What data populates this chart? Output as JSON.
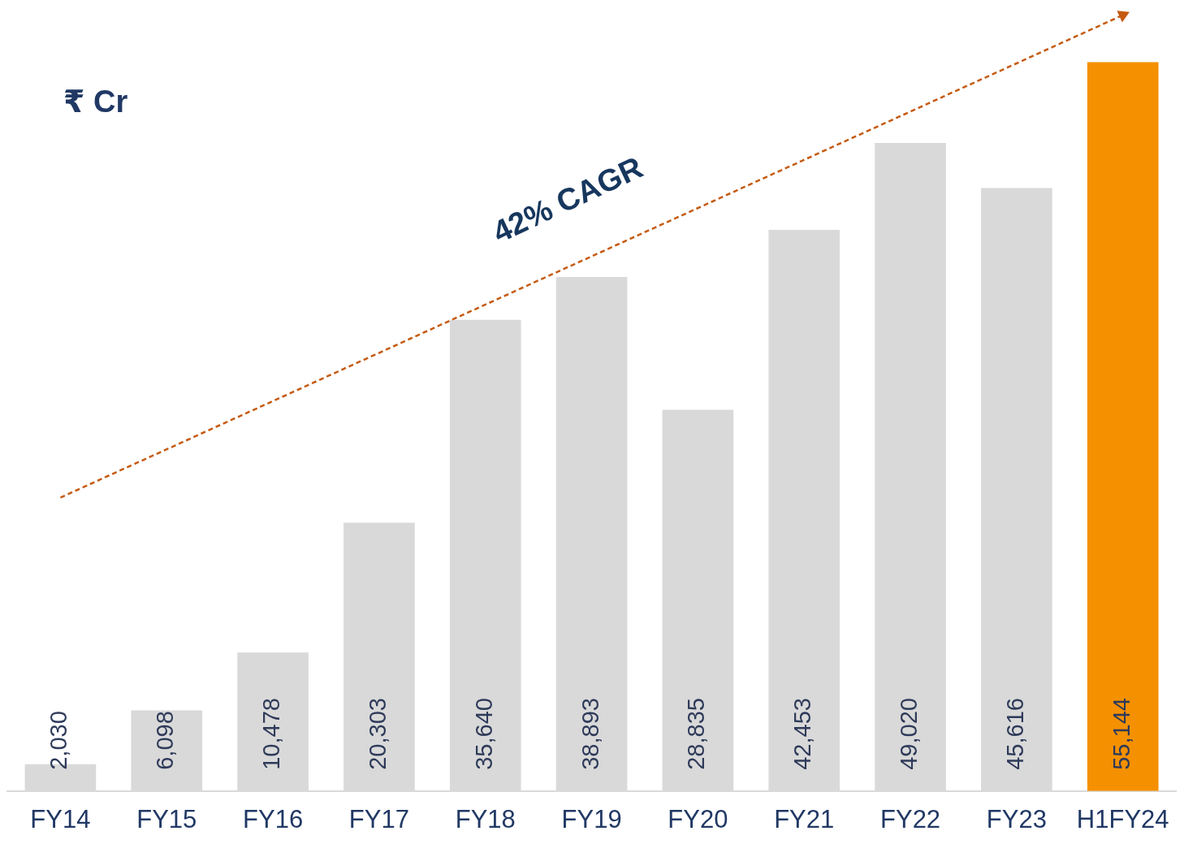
{
  "chart_data": {
    "type": "bar",
    "categories": [
      "FY14",
      "FY15",
      "FY16",
      "FY17",
      "FY18",
      "FY19",
      "FY20",
      "FY21",
      "FY22",
      "FY23",
      "H1FY24"
    ],
    "series": [
      {
        "values": [
          2030,
          6098,
          10478,
          20303,
          35640,
          38893,
          28835,
          42453,
          49020,
          45616,
          55144
        ],
        "colors": [
          "#d9d9d9",
          "#d9d9d9",
          "#d9d9d9",
          "#d9d9d9",
          "#d9d9d9",
          "#d9d9d9",
          "#d9d9d9",
          "#d9d9d9",
          "#d9d9d9",
          "#d9d9d9",
          "#f59100"
        ],
        "value_labels": [
          "2,030",
          "6,098",
          "10,478",
          "20,303",
          "35,640",
          "38,893",
          "28,835",
          "42,453",
          "49,020",
          "45,616",
          "55,144"
        ]
      },
      {
        "type": "line",
        "x": [
          "FY14",
          "H1FY24"
        ],
        "values": [
          22200,
          58700
        ],
        "color": "#c55a11",
        "line_style": "dashed"
      }
    ],
    "annotations": [
      "₹ Cr",
      "42% CAGR"
    ],
    "grid": false,
    "legend": false,
    "tick_labels": "x"
  }
}
